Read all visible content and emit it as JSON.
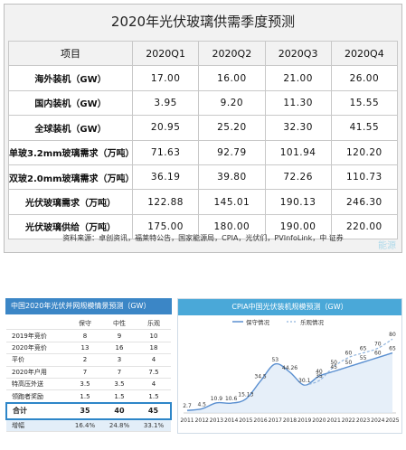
{
  "top": {
    "title": "2020年光伏玻璃供需季度预测",
    "headers": [
      "项目",
      "2020Q1",
      "2020Q2",
      "2020Q3",
      "2020Q4"
    ],
    "rows": [
      {
        "label": "海外装机（GW）",
        "values": [
          "17.00",
          "16.00",
          "21.00",
          "26.00"
        ]
      },
      {
        "label": "国内装机（GW）",
        "values": [
          "3.95",
          "9.20",
          "11.30",
          "15.55"
        ]
      },
      {
        "label": "全球装机（GW）",
        "values": [
          "20.95",
          "25.20",
          "32.30",
          "41.55"
        ]
      },
      {
        "label": "单玻3.2mm玻璃需求（万吨）",
        "values": [
          "71.63",
          "92.79",
          "101.94",
          "120.20"
        ]
      },
      {
        "label": "双玻2.0mm玻璃需求（万吨）",
        "values": [
          "36.19",
          "39.80",
          "72.26",
          "110.73"
        ]
      },
      {
        "label": "光伏玻璃需求（万吨）",
        "values": [
          "122.88",
          "145.01",
          "190.13",
          "246.30"
        ]
      },
      {
        "label": "光伏玻璃供给（万吨）",
        "values": [
          "175.00",
          "180.00",
          "190.00",
          "220.00"
        ]
      }
    ],
    "source": "资料来源：卓创资讯，福莱特公告，国家能源局，CPIA，光伏们，PVInfoLink，中      证券",
    "watermark": "能源"
  },
  "left": {
    "title": "中国2020年光伏并网规模情景预测（GW）",
    "columns": [
      "",
      "保守",
      "中性",
      "乐观"
    ],
    "rows": [
      {
        "label": "2019年竞价",
        "values": [
          "8",
          "9",
          "10"
        ]
      },
      {
        "label": "2020年竞价",
        "values": [
          "13",
          "16",
          "18"
        ]
      },
      {
        "label": "平价",
        "values": [
          "2",
          "3",
          "4"
        ]
      },
      {
        "label": "2020年户用",
        "values": [
          "7",
          "7",
          "7.5"
        ]
      },
      {
        "label": "特高压外送",
        "values": [
          "3.5",
          "3.5",
          "4"
        ]
      },
      {
        "label": "领跑者奖励",
        "values": [
          "1.5",
          "1.5",
          "1.5"
        ]
      }
    ],
    "total": {
      "label": "合计",
      "values": [
        "35",
        "40",
        "45"
      ]
    },
    "increase": {
      "label": "增幅",
      "values": [
        "16.4%",
        "24.8%",
        "33.1%"
      ]
    }
  },
  "chart_data": {
    "type": "line",
    "title": "CPIA中国光伏装机规模预测（GW）",
    "x": [
      "2011",
      "2012",
      "2013",
      "2014",
      "2015",
      "2016",
      "2017",
      "2018",
      "2019",
      "2020",
      "2021",
      "2022",
      "2023",
      "2024",
      "2025"
    ],
    "series": [
      {
        "name": "保守情况",
        "values": [
          2.7,
          4.5,
          10.9,
          10.6,
          15.13,
          34.5,
          53,
          44.26,
          30.1,
          40,
          45,
          50,
          55,
          60,
          65
        ],
        "color": "#5a8fd0"
      },
      {
        "name": "乐观情况",
        "values": [
          null,
          null,
          null,
          null,
          null,
          null,
          null,
          null,
          30.1,
          35,
          50,
          60,
          65,
          70,
          80
        ],
        "color": "#8fb3dd"
      }
    ],
    "labels": {
      "conservative": [
        "2.7",
        "4.5",
        "10.9",
        "10.6",
        "15.13",
        "34.5",
        "53",
        "44.26",
        "30.1",
        "40",
        "45",
        "50",
        "55",
        "60",
        "65"
      ],
      "optimistic": [
        "35",
        "50",
        "60",
        "65",
        "70",
        "80"
      ]
    },
    "ylim": [
      0,
      90
    ]
  }
}
